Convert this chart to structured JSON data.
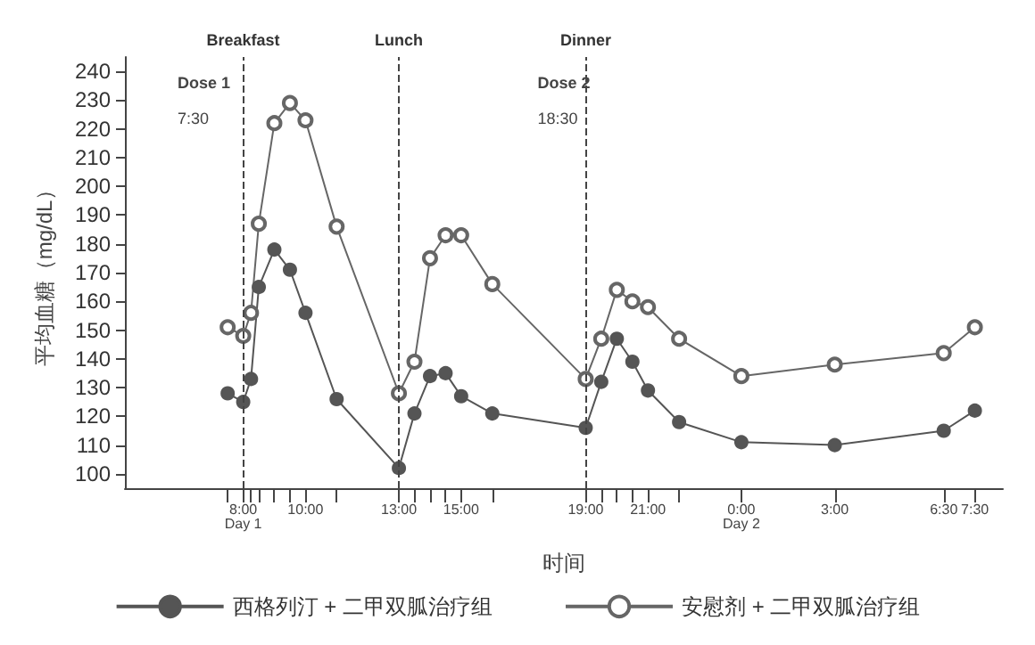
{
  "chart_data": {
    "type": "line",
    "xlabel": "时间",
    "ylabel": "平均血糖（mg/dL）",
    "xlim": [
      "--01-01T04:12",
      "--01-02T08:24"
    ],
    "ylim": [
      95,
      245
    ],
    "yticks": [
      100,
      110,
      120,
      130,
      140,
      150,
      160,
      170,
      180,
      190,
      200,
      210,
      220,
      230,
      240
    ],
    "xticks": [
      {
        "value": "--01-01T07:30",
        "label": null
      },
      {
        "value": "--01-01T08:00",
        "label": "8:00\nDay 1"
      },
      {
        "value": "--01-01T08:15",
        "label": null
      },
      {
        "value": "--01-01T08:30",
        "label": null
      },
      {
        "value": "--01-01T09:00",
        "label": null
      },
      {
        "value": "--01-01T09:30",
        "label": null
      },
      {
        "value": "--01-01T10:00",
        "label": "10:00"
      },
      {
        "value": "--01-01T11:00",
        "label": null
      },
      {
        "value": "--01-01T13:00",
        "label": "13:00"
      },
      {
        "value": "--01-01T13:30",
        "label": null
      },
      {
        "value": "--01-01T14:00",
        "label": null
      },
      {
        "value": "--01-01T14:30",
        "label": null
      },
      {
        "value": "--01-01T15:00",
        "label": "15:00"
      },
      {
        "value": "--01-01T16:00",
        "label": null
      },
      {
        "value": "--01-01T19:00",
        "label": "19:00"
      },
      {
        "value": "--01-01T19:30",
        "label": null
      },
      {
        "value": "--01-01T20:00",
        "label": null
      },
      {
        "value": "--01-01T20:30",
        "label": null
      },
      {
        "value": "--01-01T21:00",
        "label": "21:00"
      },
      {
        "value": "--01-01T22:00",
        "label": null
      },
      {
        "value": "--01-02T00:00",
        "label": "0:00\nDay 2"
      },
      {
        "value": "--01-02T03:00",
        "label": "3:00"
      },
      {
        "value": "--01-02T06:30",
        "label": "6:30"
      },
      {
        "value": "--01-02T07:30",
        "label": "7:30"
      }
    ],
    "x": [
      "--01-01T07:30",
      "--01-01T08:00",
      "--01-01T08:15",
      "--01-01T08:30",
      "--01-01T09:00",
      "--01-01T09:30",
      "--01-01T10:00",
      "--01-01T11:00",
      "--01-01T13:00",
      "--01-01T13:30",
      "--01-01T14:00",
      "--01-01T14:30",
      "--01-01T15:00",
      "--01-01T16:00",
      "--01-01T19:00",
      "--01-01T19:30",
      "--01-01T20:00",
      "--01-01T20:30",
      "--01-01T21:00",
      "--01-01T22:00",
      "--01-02T00:00",
      "--01-02T03:00",
      "--01-02T06:30",
      "--01-02T07:30"
    ],
    "series": [
      {
        "name": "西格列汀 + 二甲双胍治疗组",
        "color": "#555555",
        "values": [
          128,
          125,
          133,
          165,
          178,
          171,
          156,
          126,
          102,
          121,
          134,
          135,
          127,
          121,
          116,
          132,
          147,
          139,
          129,
          118,
          111,
          110,
          115,
          122
        ]
      },
      {
        "name": "安慰剂 + 二甲双胍治疗组",
        "color": "#666666",
        "values": [
          151,
          148,
          156,
          187,
          222,
          229,
          223,
          186,
          128,
          139,
          175,
          183,
          183,
          166,
          133,
          147,
          164,
          160,
          158,
          147,
          134,
          138,
          142,
          151
        ]
      }
    ],
    "ref_lines": [
      {
        "axis": "x",
        "value": "--01-01T08:00",
        "label": "Breakfast",
        "line_style": "dashed"
      },
      {
        "axis": "x",
        "value": "--01-01T13:00",
        "label": "Lunch",
        "line_style": "dashed"
      },
      {
        "axis": "x",
        "value": "--01-01T19:00",
        "label": "Dinner",
        "line_style": "dashed"
      }
    ],
    "annotations": [
      "Dose 1",
      "7:30",
      "Dose 2",
      "18:30"
    ],
    "marker": "circle",
    "line_style": "solid",
    "grid": false,
    "legend": "bottom"
  }
}
